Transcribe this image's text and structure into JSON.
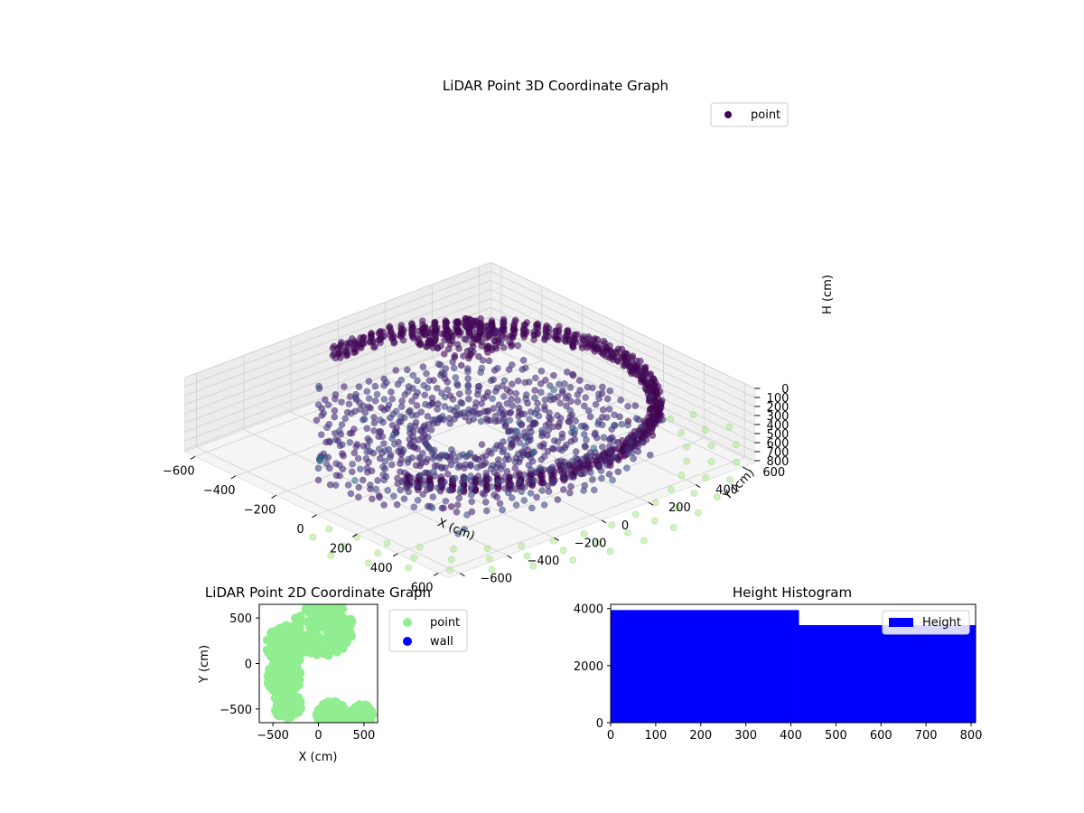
{
  "chart_data": [
    {
      "type": "scatter3d",
      "title": "LiDAR Point 3D Coordinate Graph",
      "xlabel": "X (cm)",
      "ylabel": "Y (cm)",
      "zlabel": "H (cm)",
      "xlim": [
        -650,
        650
      ],
      "ylim": [
        -650,
        650
      ],
      "zlim": [
        0,
        820
      ],
      "z_inverted": true,
      "x_ticks": [
        -600,
        -400,
        -200,
        0,
        200,
        400,
        600
      ],
      "y_ticks": [
        -600,
        -400,
        -200,
        0,
        200,
        400,
        600
      ],
      "z_ticks": [
        0,
        100,
        200,
        300,
        400,
        500,
        600,
        700,
        800
      ],
      "grid": true,
      "legend": {
        "position": "top-right",
        "entries": [
          {
            "name": "point",
            "color": "#440154"
          }
        ]
      },
      "colormap": "viridis",
      "series": [
        {
          "name": "point",
          "structures": [
            {
              "kind": "ring",
              "radius": 600,
              "h_range": [
                180,
                330
              ],
              "arc_deg": [
                -60,
                185
              ]
            },
            {
              "kind": "disc",
              "radius_range": [
                150,
                560
              ],
              "h_range": [
                560,
                640
              ]
            },
            {
              "kind": "cluster",
              "center": [
                -420,
                330
              ],
              "h_range": [
                250,
                330
              ]
            },
            {
              "kind": "cluster",
              "center": [
                -380,
                -500
              ],
              "h_range": [
                720,
                800
              ]
            },
            {
              "kind": "floor_grid",
              "radius": 900,
              "h": 820
            }
          ]
        }
      ]
    },
    {
      "type": "scatter",
      "title": "LiDAR Point 2D Coordinate Graph",
      "xlabel": "X (cm)",
      "ylabel": "Y (cm)",
      "xlim": [
        -650,
        650
      ],
      "ylim": [
        -650,
        650
      ],
      "x_ticks": [
        -500,
        0,
        500
      ],
      "y_ticks": [
        -500,
        0,
        500
      ],
      "legend": {
        "position": "outside-right",
        "entries": [
          {
            "name": "point",
            "color": "#90ee90"
          },
          {
            "name": "wall",
            "color": "#0000ff"
          }
        ]
      },
      "series": [
        {
          "name": "point",
          "color": "#90ee90",
          "regions": [
            {
              "center": [
                50,
                400
              ],
              "radius": 330
            },
            {
              "center": [
                -350,
                200
              ],
              "radius": 230
            },
            {
              "center": [
                -380,
                -150
              ],
              "radius": 190
            },
            {
              "center": [
                -350,
                -450
              ],
              "radius": 160
            },
            {
              "center": [
                150,
                -580
              ],
              "radius": 170
            },
            {
              "center": [
                480,
                -560
              ],
              "radius": 120
            }
          ]
        },
        {
          "name": "wall",
          "color": "#0000ff",
          "regions": []
        }
      ]
    },
    {
      "type": "bar",
      "title": "Height Histogram",
      "xlabel": "",
      "ylabel": "",
      "xlim": [
        0,
        810
      ],
      "ylim": [
        0,
        4150
      ],
      "x_ticks": [
        0,
        100,
        200,
        300,
        400,
        500,
        600,
        700,
        800
      ],
      "y_ticks": [
        0,
        2000,
        4000
      ],
      "legend": {
        "position": "top-right",
        "entries": [
          {
            "name": "Height",
            "color": "#0000ff"
          }
        ]
      },
      "bins": [
        {
          "x0": 0,
          "x1": 418,
          "count": 3950
        },
        {
          "x0": 418,
          "x1": 810,
          "count": 3420
        }
      ],
      "color": "#0000ff"
    }
  ]
}
